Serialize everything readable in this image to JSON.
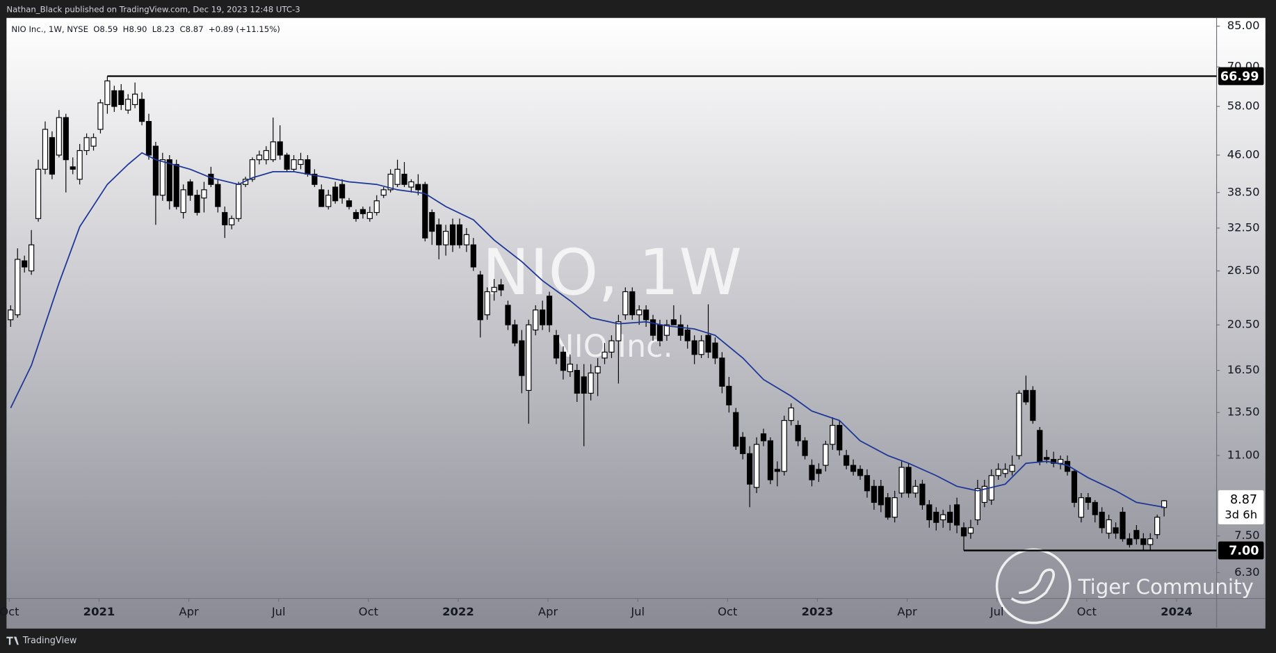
{
  "header": "Nathan_Black published on TradingView.com, Dec 19, 2023 12:48 UTC-3",
  "footer": "TradingView",
  "chart_data": {
    "type": "candlestick",
    "legend_items": [
      "NIO Inc., 1W, NYSE",
      "O8.59",
      "H8.90",
      "L8.23",
      "C8.87",
      "+0.89 (+11.15%)"
    ],
    "watermark": {
      "title": "NIO, 1W",
      "subtitle": "NIO Inc."
    },
    "brand_watermark": "Tiger Community",
    "log_y": true,
    "grid": false,
    "up_color": "#ffffff",
    "down_color": "#000000",
    "ylim": [
      5.57,
      88.4
    ],
    "yticks": [
      {
        "value": 85,
        "label": "85.00"
      },
      {
        "value": 70,
        "label": "70.00"
      },
      {
        "value": 58,
        "label": "58.00"
      },
      {
        "value": 46,
        "label": "46.00"
      },
      {
        "value": 38.5,
        "label": "38.50"
      },
      {
        "value": 32.5,
        "label": "32.50"
      },
      {
        "value": 26.5,
        "label": "26.50"
      },
      {
        "value": 20.5,
        "label": "20.50"
      },
      {
        "value": 16.5,
        "label": "16.50"
      },
      {
        "value": 13.5,
        "label": "13.50"
      },
      {
        "value": 11,
        "label": "11.00"
      },
      {
        "value": 7.5,
        "label": "7.50"
      },
      {
        "value": 6.3,
        "label": "6.30"
      }
    ],
    "xlim": [
      -0.6,
      174.6
    ],
    "xticks": [
      {
        "value": -0.2,
        "label": "Oct"
      },
      {
        "value": 12.8,
        "label": "2021"
      },
      {
        "value": 25.8,
        "label": "Apr"
      },
      {
        "value": 38.8,
        "label": "Jul"
      },
      {
        "value": 51.8,
        "label": "Oct"
      },
      {
        "value": 64.8,
        "label": "2022"
      },
      {
        "value": 77.8,
        "label": "Apr"
      },
      {
        "value": 90.8,
        "label": "Jul"
      },
      {
        "value": 103.8,
        "label": "Oct"
      },
      {
        "value": 116.8,
        "label": "2023"
      },
      {
        "value": 129.8,
        "label": "Apr"
      },
      {
        "value": 142.8,
        "label": "Jul"
      },
      {
        "value": 155.8,
        "label": "Oct"
      },
      {
        "value": 168.8,
        "label": "2024"
      }
    ],
    "levels": [
      {
        "value": 66.99,
        "label": "66.99",
        "x": 14
      },
      {
        "value": 7.0,
        "label": "7.00",
        "x": 138
      }
    ],
    "last_price": {
      "value": 8.87,
      "countdown": "3d 6h"
    },
    "ma": {
      "color": "#1b3596",
      "x": [
        0,
        3,
        7,
        10,
        14,
        17,
        19,
        21,
        26,
        29,
        33,
        35,
        38,
        41,
        46,
        49,
        53,
        56,
        60,
        63,
        67,
        70,
        74,
        77,
        81,
        84,
        88,
        92,
        95,
        99,
        102,
        106,
        109,
        113,
        116,
        120,
        123,
        127,
        130,
        134,
        137,
        140,
        144,
        147,
        150,
        153,
        156,
        160,
        163,
        167
      ],
      "values": [
        13.8,
        16.9,
        25,
        32.7,
        40,
        44,
        46.5,
        45,
        43,
        41.3,
        40,
        41.3,
        42.5,
        42.5,
        41.3,
        40.5,
        40,
        39,
        38.3,
        36,
        33.8,
        30.7,
        27.7,
        25.3,
        23,
        21.2,
        20.6,
        20.8,
        20.4,
        20.1,
        19.5,
        17.5,
        15.8,
        14.6,
        13.6,
        13,
        11.8,
        11,
        10.6,
        10,
        9.5,
        9.3,
        9.6,
        10.6,
        10.7,
        10.5,
        9.9,
        9.3,
        8.8,
        8.6
      ]
    },
    "ohlc": [
      [
        21,
        22.5,
        20.3,
        22
      ],
      [
        21.5,
        29.5,
        21.2,
        28
      ],
      [
        27.8,
        28.5,
        26.3,
        27
      ],
      [
        26.5,
        32.2,
        26,
        30
      ],
      [
        34,
        45,
        33.5,
        43
      ],
      [
        43,
        54,
        42,
        52
      ],
      [
        50,
        51.5,
        41,
        42
      ],
      [
        46,
        57,
        45.5,
        55
      ],
      [
        55,
        56,
        38.5,
        45
      ],
      [
        43.5,
        45.5,
        42,
        43
      ],
      [
        41,
        48.5,
        40,
        47
      ],
      [
        47,
        51,
        46,
        50
      ],
      [
        48,
        51,
        47,
        50
      ],
      [
        52,
        60,
        51,
        59
      ],
      [
        58.5,
        66.99,
        56,
        65.5
      ],
      [
        62.5,
        64,
        56.5,
        58
      ],
      [
        62.5,
        64.5,
        57,
        58.5
      ],
      [
        57,
        61.5,
        56,
        60
      ],
      [
        58.5,
        65,
        57.5,
        61.5
      ],
      [
        60,
        62,
        53,
        54
      ],
      [
        54,
        56,
        45,
        46
      ],
      [
        48,
        49,
        33,
        38
      ],
      [
        38,
        46.5,
        37,
        45
      ],
      [
        45,
        46,
        35.5,
        37
      ],
      [
        44,
        45,
        35.5,
        36
      ],
      [
        35,
        40,
        34,
        39
      ],
      [
        40.5,
        41,
        37,
        38
      ],
      [
        38,
        39,
        34.5,
        35
      ],
      [
        37.5,
        40.5,
        35,
        39
      ],
      [
        42,
        43.5,
        39.5,
        40
      ],
      [
        40,
        41,
        35,
        36
      ],
      [
        35,
        36,
        31,
        33
      ],
      [
        33,
        34.5,
        32.3,
        34
      ],
      [
        34,
        40.5,
        33.5,
        40
      ],
      [
        40,
        41.5,
        39.5,
        41
      ],
      [
        41,
        45.5,
        40.5,
        45
      ],
      [
        45,
        47,
        44,
        46
      ],
      [
        45,
        48,
        44,
        47
      ],
      [
        45,
        55,
        44.5,
        49
      ],
      [
        49,
        53,
        45,
        46
      ],
      [
        46,
        46.5,
        42.5,
        43
      ],
      [
        43,
        46,
        42.5,
        45
      ],
      [
        44,
        46.5,
        43,
        45
      ],
      [
        45,
        46,
        41.5,
        42
      ],
      [
        42,
        43,
        39.5,
        40
      ],
      [
        39,
        40,
        36,
        36
      ],
      [
        36,
        39,
        35.5,
        38
      ],
      [
        39.5,
        40.5,
        36.5,
        37
      ],
      [
        40,
        41,
        36.5,
        37.5
      ],
      [
        37,
        37.5,
        35.5,
        36
      ],
      [
        35,
        35.5,
        33.5,
        34
      ],
      [
        35.5,
        36,
        34,
        34.8
      ],
      [
        34,
        36,
        33.5,
        35
      ],
      [
        35,
        38,
        34.5,
        37
      ],
      [
        38,
        39.5,
        37.5,
        39
      ],
      [
        39,
        43,
        38.5,
        42
      ],
      [
        40,
        45,
        39.5,
        43
      ],
      [
        42,
        44.5,
        39.5,
        40
      ],
      [
        39.5,
        41,
        38.5,
        40.5
      ],
      [
        40,
        42,
        38,
        39
      ],
      [
        40,
        40.5,
        30.5,
        31
      ],
      [
        35,
        35.5,
        30,
        32
      ],
      [
        33,
        34,
        28,
        30
      ],
      [
        30,
        33,
        28.5,
        32
      ],
      [
        33,
        34,
        29,
        30
      ],
      [
        33,
        34,
        29.5,
        30
      ],
      [
        30,
        32.5,
        29,
        31.5
      ],
      [
        30,
        31,
        26.5,
        27
      ],
      [
        26,
        26.5,
        19.3,
        21
      ],
      [
        21.5,
        24.5,
        21,
        24
      ],
      [
        24,
        25.5,
        23,
        24.5
      ],
      [
        24.8,
        25.5,
        23.5,
        24.2
      ],
      [
        22.5,
        23,
        20,
        20.5
      ],
      [
        20.5,
        21,
        18.5,
        18.8
      ],
      [
        19,
        20,
        14.8,
        16.1
      ],
      [
        15,
        21,
        12.8,
        20.5
      ],
      [
        20,
        22.5,
        19.5,
        22
      ],
      [
        22,
        23,
        20,
        20.5
      ],
      [
        23.5,
        24,
        19.8,
        20.5
      ],
      [
        19.5,
        20,
        17,
        17.5
      ],
      [
        18,
        18.5,
        15.8,
        16.5
      ],
      [
        16.4,
        17.8,
        16,
        17
      ],
      [
        16.5,
        17,
        14.2,
        14.8
      ],
      [
        16,
        17,
        11.5,
        14.8
      ],
      [
        14.8,
        17,
        14.3,
        16.3
      ],
      [
        16.3,
        17.5,
        14.6,
        16.8
      ],
      [
        17.5,
        18.8,
        17,
        18
      ],
      [
        18,
        19.5,
        17.5,
        19
      ],
      [
        19,
        21.5,
        15.5,
        20.8
      ],
      [
        21.5,
        24.5,
        21,
        24
      ],
      [
        24,
        24.5,
        21,
        21.5
      ],
      [
        21.5,
        22.5,
        20.5,
        22
      ],
      [
        22,
        22.5,
        20.3,
        21
      ],
      [
        21,
        21.5,
        19,
        19.5
      ],
      [
        20.5,
        21,
        18.5,
        19
      ],
      [
        19.5,
        21,
        19,
        20.5
      ],
      [
        21,
        22.5,
        20.5,
        20.5
      ],
      [
        20.5,
        21.5,
        19,
        19.5
      ],
      [
        20,
        20.5,
        18.3,
        19
      ],
      [
        19,
        19.5,
        17,
        17.8
      ],
      [
        17.8,
        19.5,
        17.5,
        19
      ],
      [
        19.5,
        22.6,
        17.5,
        18
      ],
      [
        18.8,
        19.3,
        17,
        17.5
      ],
      [
        17.5,
        18,
        14.8,
        15.3
      ],
      [
        15.3,
        16,
        13.5,
        14
      ],
      [
        13.5,
        13.8,
        11.3,
        11.5
      ],
      [
        12,
        12.3,
        10.8,
        11.1
      ],
      [
        11.1,
        11.5,
        8.6,
        9.6
      ],
      [
        9.45,
        12,
        9.2,
        11.6
      ],
      [
        12.2,
        12.5,
        11.5,
        11.8
      ],
      [
        11.8,
        12,
        9.6,
        9.8
      ],
      [
        10.3,
        10.7,
        9.5,
        10.2
      ],
      [
        10.2,
        13.3,
        10,
        13
      ],
      [
        13,
        14.1,
        12.7,
        13.8
      ],
      [
        12.7,
        13,
        11.5,
        11.8
      ],
      [
        11.8,
        12,
        10.8,
        11
      ],
      [
        10.5,
        10.8,
        9.5,
        9.8
      ],
      [
        10.3,
        10.6,
        9.7,
        10.1
      ],
      [
        10.5,
        11.8,
        10.2,
        11.6
      ],
      [
        11.6,
        13.2,
        11.3,
        12.7
      ],
      [
        12.7,
        13,
        11,
        11.3
      ],
      [
        11,
        11.3,
        10.3,
        10.5
      ],
      [
        10.5,
        10.8,
        10,
        10.2
      ],
      [
        10.3,
        10.5,
        9.8,
        10
      ],
      [
        10,
        10.3,
        9,
        9.3
      ],
      [
        9.5,
        9.8,
        8.5,
        8.8
      ],
      [
        9.5,
        9.8,
        8.4,
        8.7
      ],
      [
        9,
        9.2,
        8.1,
        8.2
      ],
      [
        8.2,
        9.3,
        8,
        9
      ],
      [
        9.2,
        10.7,
        9,
        10.4
      ],
      [
        10.4,
        10.6,
        9,
        9.2
      ],
      [
        9.2,
        9.8,
        9,
        9.5
      ],
      [
        9.6,
        9.8,
        8.5,
        8.7
      ],
      [
        8.7,
        8.9,
        7.8,
        8.1
      ],
      [
        8.4,
        8.6,
        7.7,
        8
      ],
      [
        8.1,
        8.5,
        7.8,
        8.3
      ],
      [
        8.4,
        8.7,
        7.7,
        8
      ],
      [
        8.7,
        9,
        7.6,
        7.9
      ],
      [
        7.8,
        8,
        7,
        7.5
      ],
      [
        7.6,
        8.1,
        7.4,
        7.8
      ],
      [
        8.1,
        9.8,
        7.9,
        9.4
      ],
      [
        8.8,
        9.8,
        8.6,
        9.5
      ],
      [
        8.9,
        10.3,
        8.7,
        10
      ],
      [
        10,
        10.6,
        9.8,
        10.3
      ],
      [
        10.1,
        10.6,
        9.9,
        10.3
      ],
      [
        10.2,
        11,
        10,
        10.5
      ],
      [
        11,
        15,
        10.8,
        14.8
      ],
      [
        15,
        16.1,
        14,
        14.2
      ],
      [
        15,
        15.3,
        12.8,
        13
      ],
      [
        12.4,
        12.6,
        10.5,
        10.7
      ],
      [
        10.9,
        11.3,
        10.6,
        10.8
      ],
      [
        10.8,
        11.2,
        10.4,
        10.6
      ],
      [
        10.6,
        11,
        10.3,
        10.8
      ],
      [
        10.7,
        11,
        10,
        10.2
      ],
      [
        10.2,
        10.3,
        8.6,
        8.8
      ],
      [
        8.2,
        9.2,
        8,
        9
      ],
      [
        9,
        9.2,
        8.5,
        8.8
      ],
      [
        8.8,
        8.9,
        8,
        8.3
      ],
      [
        8.4,
        8.6,
        7.6,
        7.8
      ],
      [
        7.6,
        8.3,
        7.4,
        8.1
      ],
      [
        7.8,
        8,
        7.4,
        7.6
      ],
      [
        8.4,
        8.6,
        7.3,
        7.4
      ],
      [
        7.4,
        7.6,
        7.1,
        7.2
      ],
      [
        7.7,
        7.9,
        7.2,
        7.4
      ],
      [
        7.4,
        7.6,
        7,
        7.2
      ],
      [
        7.2,
        7.6,
        7,
        7.4
      ],
      [
        7.55,
        8.3,
        7.4,
        8.2
      ],
      [
        8.59,
        8.9,
        8.23,
        8.87
      ]
    ]
  }
}
